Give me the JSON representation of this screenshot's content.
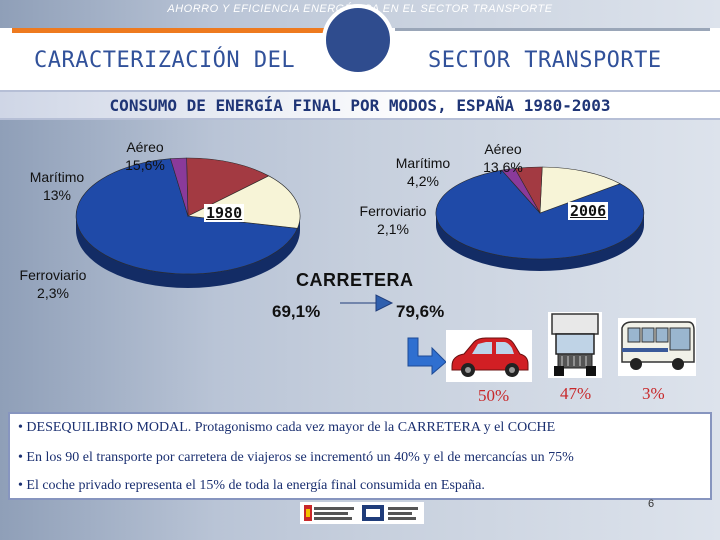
{
  "header": {
    "top_title": "AHORRO Y EFICIENCIA ENERGÉTICA EN EL SECTOR TRANSPORTE",
    "title_left": "CARACTERIZACIÓN DEL",
    "title_right": "SECTOR TRANSPORTE",
    "subtitle": "CONSUMO DE ENERGÍA FINAL POR MODOS, ESPAÑA 1980-2003"
  },
  "colors": {
    "road": "#1f4aa8",
    "air": "#f7f4d7",
    "maritime": "#a33a42",
    "rail": "#8a3a9a",
    "accent_orange": "#ee7a1f",
    "accent_blue": "#31519a",
    "share_red": "#c8282a"
  },
  "chart_data": [
    {
      "type": "pie",
      "year_label": "1980",
      "slices": [
        {
          "name": "CARRETERA",
          "value": 69.1,
          "label": "69,1%"
        },
        {
          "name": "Aéreo",
          "value": 15.6,
          "label": "Aéreo\n15,6%"
        },
        {
          "name": "Marítimo",
          "value": 13.0,
          "label": "Marítimo\n13%"
        },
        {
          "name": "Ferroviario",
          "value": 2.3,
          "label": "Ferroviario\n2,3%"
        }
      ]
    },
    {
      "type": "pie",
      "year_label": "2006",
      "slices": [
        {
          "name": "CARRETERA",
          "value": 79.6,
          "label": "79,6%"
        },
        {
          "name": "Aéreo",
          "value": 13.6,
          "label": "Aéreo\n13,6%"
        },
        {
          "name": "Marítimo",
          "value": 4.2,
          "label": "Marítimo\n4,2%"
        },
        {
          "name": "Ferroviario",
          "value": 2.1,
          "label": "Ferroviario\n2,1%"
        }
      ]
    }
  ],
  "road": {
    "label": "CARRETERA",
    "icons": [
      "arrow-icon",
      "car-icon",
      "truck-icon",
      "bus-icon"
    ],
    "shares": [
      {
        "vehicle": "car",
        "label": "50%"
      },
      {
        "vehicle": "truck",
        "label": "47%"
      },
      {
        "vehicle": "bus",
        "label": "3%"
      }
    ]
  },
  "bullets": [
    "• DESEQUILIBRIO MODAL. Protagonismo cada vez mayor de la CARRETERA y el COCHE",
    "• En los 90 el transporte por carretera de viajeros se incrementó un 40% y el de mercancías un 75%",
    "• El coche privado representa el 15% de toda la energía final consumida en España."
  ],
  "footer": {
    "page_number": "6",
    "logos": [
      "spain-government-logo",
      "idae-logo"
    ]
  }
}
